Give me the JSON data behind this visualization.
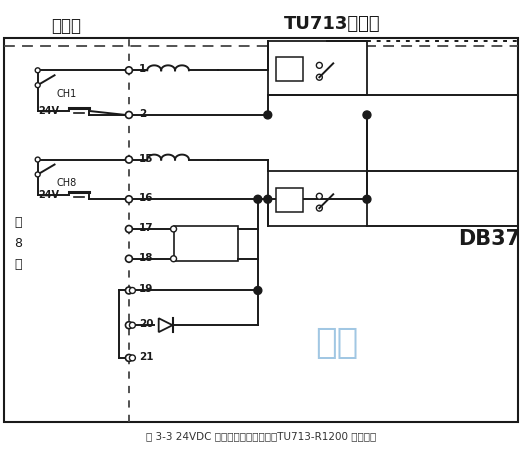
{
  "title_left": "现场侧",
  "title_right": "TU713端子板",
  "label_db37": "DB37",
  "label_front8": "前\n8\n路",
  "caption": "图 3-3 24VDC 有源触点信号接线图（TU713-R1200 端子板）",
  "watermark": "海川",
  "bg_color": "#ffffff",
  "line_color": "#1a1a1a",
  "dashed_color": "#444444",
  "watermark_color": "#5599cc"
}
